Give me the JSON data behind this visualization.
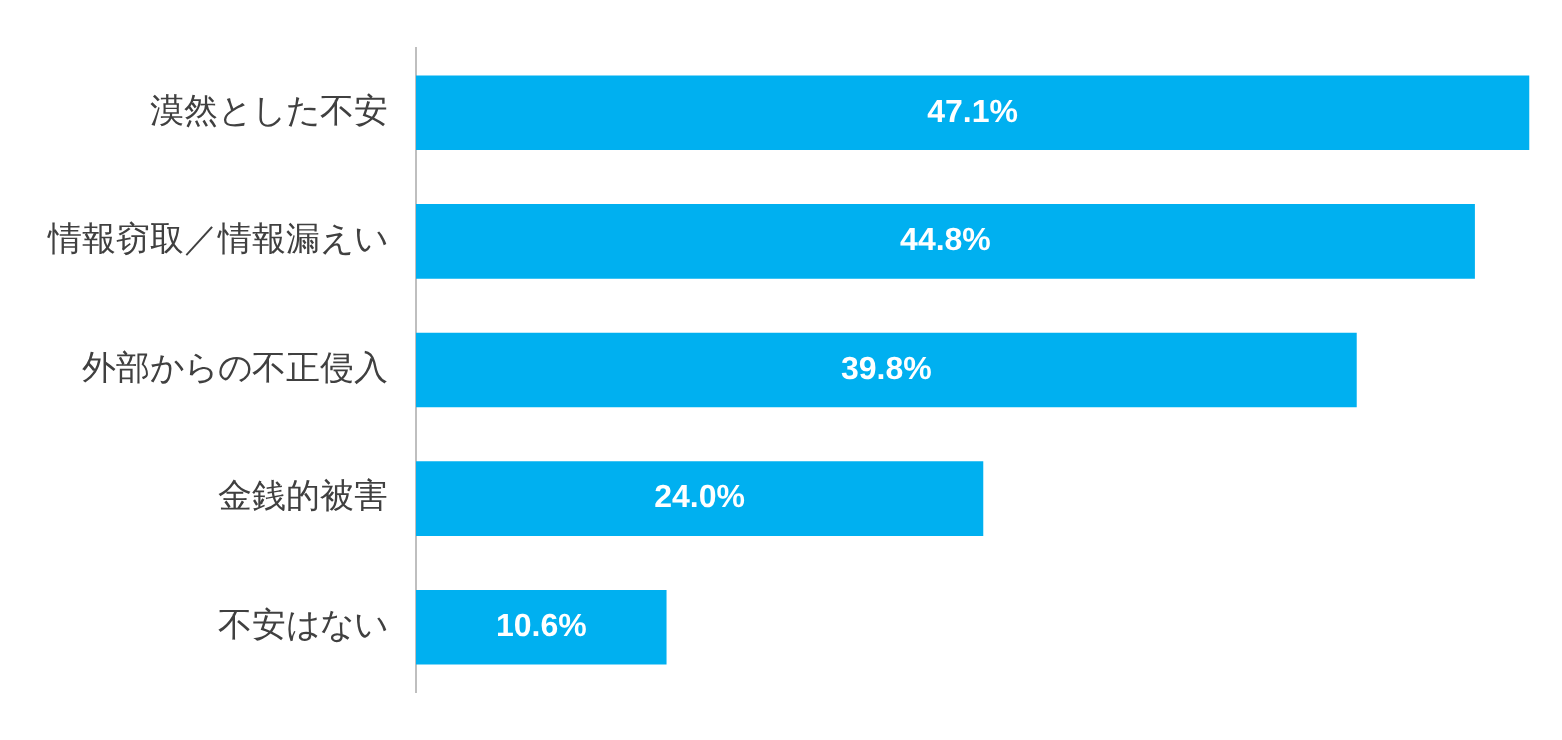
{
  "chart_data": {
    "type": "bar",
    "orientation": "horizontal",
    "categories": [
      "漠然とした不安",
      "情報窃取／情報漏えい",
      "外部からの不正侵入",
      "金銭的被害",
      "不安はない"
    ],
    "values": [
      47.1,
      44.8,
      39.8,
      24.0,
      10.6
    ],
    "value_labels": [
      "47.1%",
      "44.8%",
      "39.8%",
      "24.0%",
      "10.6%"
    ],
    "color": "#00b0f0",
    "xlim": [
      0,
      47.3
    ],
    "tick_labels": "y"
  }
}
